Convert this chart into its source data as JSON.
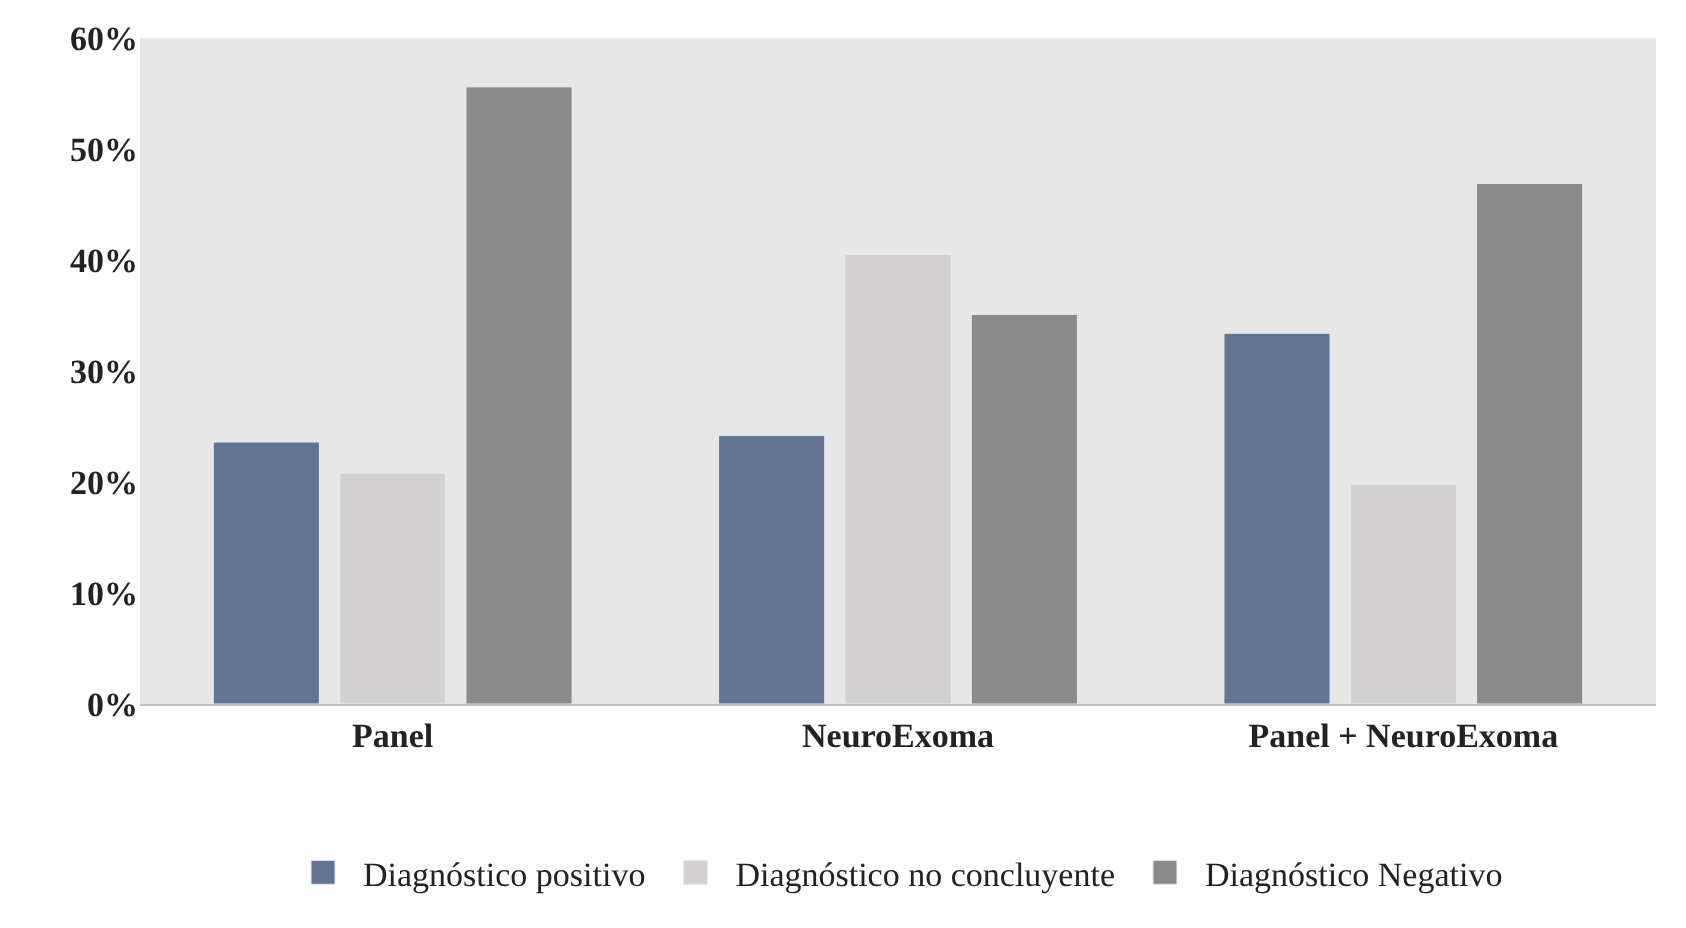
{
  "chart_data": {
    "type": "bar",
    "categories": [
      "Panel",
      "NeuroExoma",
      "Panel + NeuroExoma"
    ],
    "series": [
      {
        "name": "Diagnóstico positivo",
        "color": "#617592",
        "values": [
          23.6,
          24.2,
          33.4
        ]
      },
      {
        "name": "Diagnóstico no concluyente",
        "color": "#d2d0d1",
        "values": [
          20.8,
          40.5,
          19.8
        ]
      },
      {
        "name": "Diagnóstico Negativo",
        "color": "#8a8a8a",
        "values": [
          55.6,
          35.1,
          46.9
        ]
      }
    ],
    "ylim": [
      0,
      60
    ],
    "yticks": [
      {
        "value": 0,
        "label": "0%"
      },
      {
        "value": 10,
        "label": "10%"
      },
      {
        "value": 20,
        "label": "20%"
      },
      {
        "value": 30,
        "label": "30%"
      },
      {
        "value": 40,
        "label": "40%"
      },
      {
        "value": 50,
        "label": "50%"
      },
      {
        "value": 60,
        "label": "60%"
      }
    ],
    "legend": "bottom",
    "grid": false
  }
}
